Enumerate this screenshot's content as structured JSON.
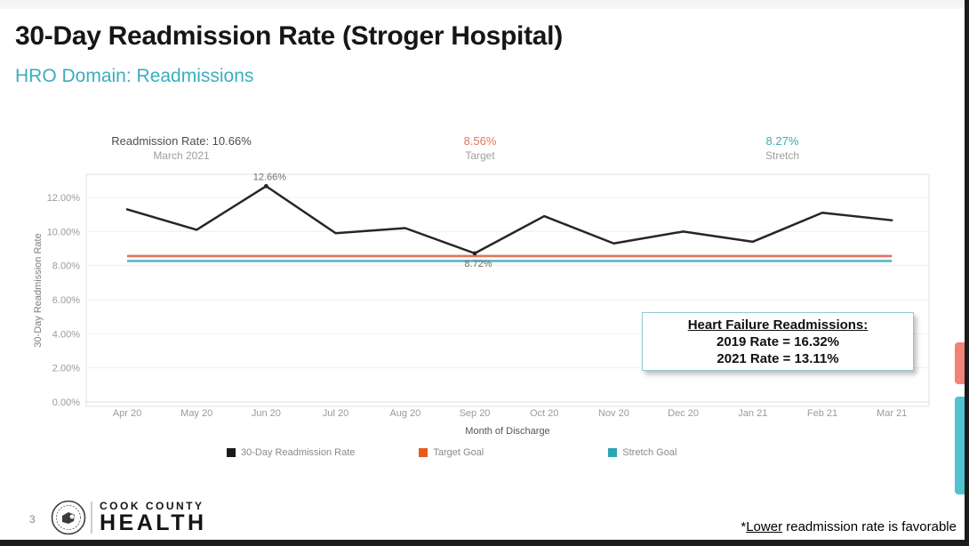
{
  "header": {
    "title": "30-Day Readmission Rate (Stroger Hospital)",
    "subtitle": "HRO Domain: Readmissions"
  },
  "stats": {
    "current": {
      "value": "Readmission Rate: 10.66%",
      "label": "March 2021"
    },
    "target": {
      "value": "8.56%",
      "label": "Target"
    },
    "stretch": {
      "value": "8.27%",
      "label": "Stretch"
    }
  },
  "chart_data": {
    "type": "line",
    "title": "30-Day Readmission Rate (Stroger Hospital)",
    "categories": [
      "Apr 20",
      "May 20",
      "Jun 20",
      "Jul 20",
      "Aug 20",
      "Sep 20",
      "Oct 20",
      "Nov 20",
      "Dec 20",
      "Jan 21",
      "Feb 21",
      "Mar 21"
    ],
    "series": [
      {
        "name": "30-Day Readmission Rate",
        "kind": "line",
        "color": "#262626",
        "values": [
          11.3,
          10.1,
          12.66,
          9.9,
          10.2,
          8.72,
          10.9,
          9.3,
          10.0,
          9.4,
          11.1,
          10.66
        ]
      },
      {
        "name": "Target Goal",
        "kind": "reference",
        "color": "#E07358",
        "value": 8.56
      },
      {
        "name": "Stretch Goal",
        "kind": "reference",
        "color": "#4FB6C4",
        "value": 8.27
      }
    ],
    "point_labels": [
      {
        "category": "Jun 20",
        "text": "12.66%",
        "position": "above"
      },
      {
        "category": "Sep 20",
        "text": "8.72%",
        "position": "below"
      }
    ],
    "xlabel": "Month of Discharge",
    "ylabel": "30-Day Readmission Rate",
    "ylim": [
      0,
      13.4
    ],
    "ytick_values": [
      0,
      2,
      4,
      6,
      8,
      10,
      12
    ],
    "ytick_labels": [
      "0.00%",
      "2.00%",
      "4.00%",
      "6.00%",
      "8.00%",
      "10.00%",
      "12.00%"
    ],
    "grid": true,
    "legend_position": "bottom",
    "legend": [
      {
        "label": "30-Day Readmission Rate",
        "color": "#1a1a1a"
      },
      {
        "label": "Target Goal",
        "color": "#E8591C"
      },
      {
        "label": "Stretch Goal",
        "color": "#2EA3B4"
      }
    ]
  },
  "annotation": {
    "heading": "Heart Failure Readmissions:",
    "line1": "2019 Rate = 16.32%",
    "line2": "2021 Rate = 13.11%"
  },
  "footer": {
    "page_number": "3",
    "org_line1": "COOK COUNTY",
    "org_line2": "HEALTH",
    "footnote_star": "*",
    "footnote_underlined": "Lower",
    "footnote_rest": " readmission rate is favorable"
  },
  "side_tabs": [
    {
      "name": "salmon-tab",
      "color": "#F08478"
    },
    {
      "name": "teal-tab",
      "color": "#4FC3CF"
    }
  ]
}
